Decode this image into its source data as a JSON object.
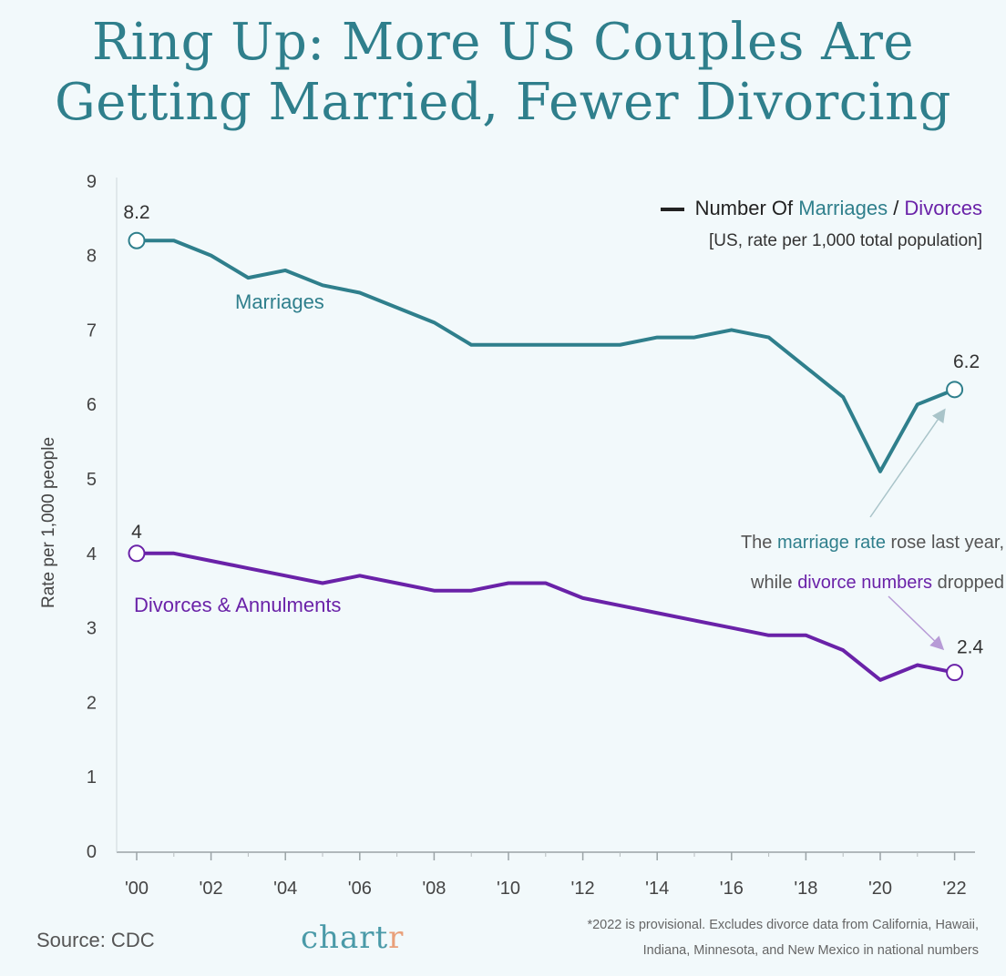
{
  "title_line1": "Ring Up: More US Couples Are",
  "title_line2": "Getting Married, Fewer Divorcing",
  "chart_data": {
    "type": "line",
    "title": "Ring Up: More US Couples Are Getting Married, Fewer Divorcing",
    "ylabel": "Rate per 1,000 people",
    "xlabel": "",
    "ylim": [
      0,
      9
    ],
    "yticks": [
      "0",
      "1",
      "2",
      "3",
      "4",
      "5",
      "6",
      "7",
      "8",
      "9"
    ],
    "xticks": [
      "'00",
      "'02",
      "'04",
      "'06",
      "'08",
      "'10",
      "'12",
      "'14",
      "'16",
      "'18",
      "'20",
      "'22"
    ],
    "x": [
      2000,
      2001,
      2002,
      2003,
      2004,
      2005,
      2006,
      2007,
      2008,
      2009,
      2010,
      2011,
      2012,
      2013,
      2014,
      2015,
      2016,
      2017,
      2018,
      2019,
      2020,
      2021,
      2022
    ],
    "series": [
      {
        "name": "Marriages",
        "color": "#2f7f8c",
        "values": [
          8.2,
          8.2,
          8.0,
          7.7,
          7.8,
          7.6,
          7.5,
          7.3,
          7.1,
          6.8,
          6.8,
          6.8,
          6.8,
          6.8,
          6.9,
          6.9,
          7.0,
          6.9,
          6.5,
          6.1,
          5.1,
          6.0,
          6.2
        ]
      },
      {
        "name": "Divorces & Annulments",
        "color": "#6a22a8",
        "values": [
          4.0,
          4.0,
          3.9,
          3.8,
          3.7,
          3.6,
          3.7,
          3.6,
          3.5,
          3.5,
          3.6,
          3.6,
          3.4,
          3.3,
          3.2,
          3.1,
          3.0,
          2.9,
          2.9,
          2.7,
          2.3,
          2.5,
          2.4
        ]
      }
    ],
    "point_labels": {
      "marriage_start": "8.2",
      "marriage_end": "6.2",
      "divorce_start": "4",
      "divorce_end": "2.4"
    }
  },
  "legend": {
    "prefix": "Number Of ",
    "marriages": "Marriages",
    "sep": " / ",
    "divorces": "Divorces",
    "sub": "[US, rate per 1,000 total population]"
  },
  "annotation": {
    "l1a": "The ",
    "l1b": "marriage rate",
    "l1c": " rose last year,",
    "l2a": "while ",
    "l2b": "divorce numbers",
    "l2c": " dropped"
  },
  "source": "Source: CDC",
  "logo": {
    "main": "chart",
    "accent": "r"
  },
  "footnote": {
    "line1": "*2022 is provisional. Excludes divorce data from California, Hawaii,",
    "line2": "Indiana, Minnesota, and New Mexico in national numbers"
  },
  "colors": {
    "marriage": "#2f7f8c",
    "divorce": "#6a22a8",
    "axis": "#999999"
  }
}
